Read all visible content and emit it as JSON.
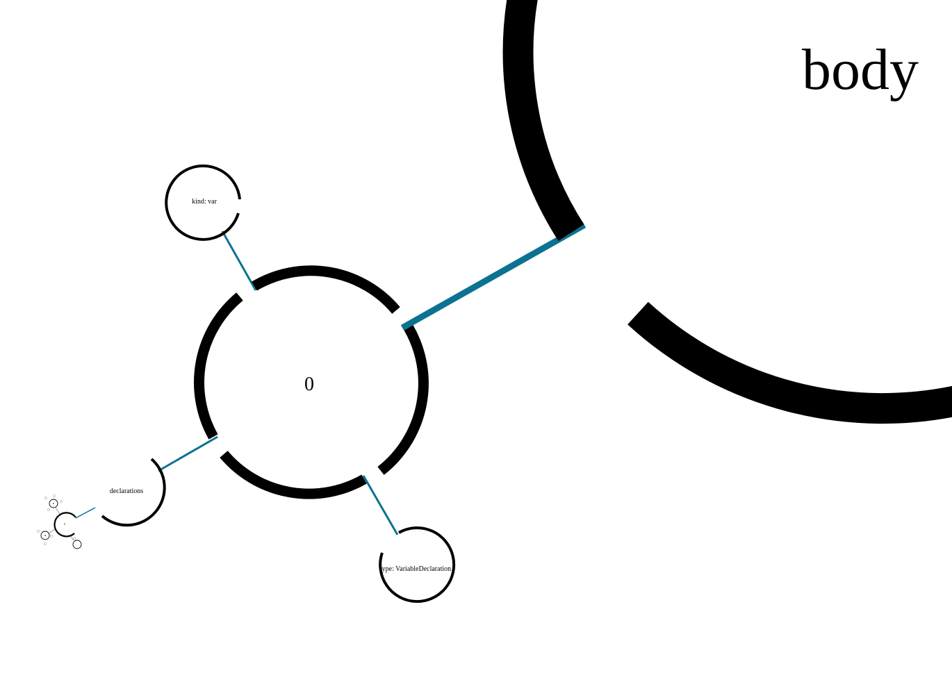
{
  "colors": {
    "ring": "#000000",
    "link": "#0b7291",
    "background": "#ffffff"
  },
  "nodes": {
    "body": {
      "label": "body"
    },
    "item": {
      "label": "0"
    },
    "kind": {
      "label": "kind: var"
    },
    "declarations": {
      "label": "declarations"
    },
    "type": {
      "label": "type: VariableDeclaration"
    },
    "declaration_item": {
      "label": "0"
    }
  }
}
